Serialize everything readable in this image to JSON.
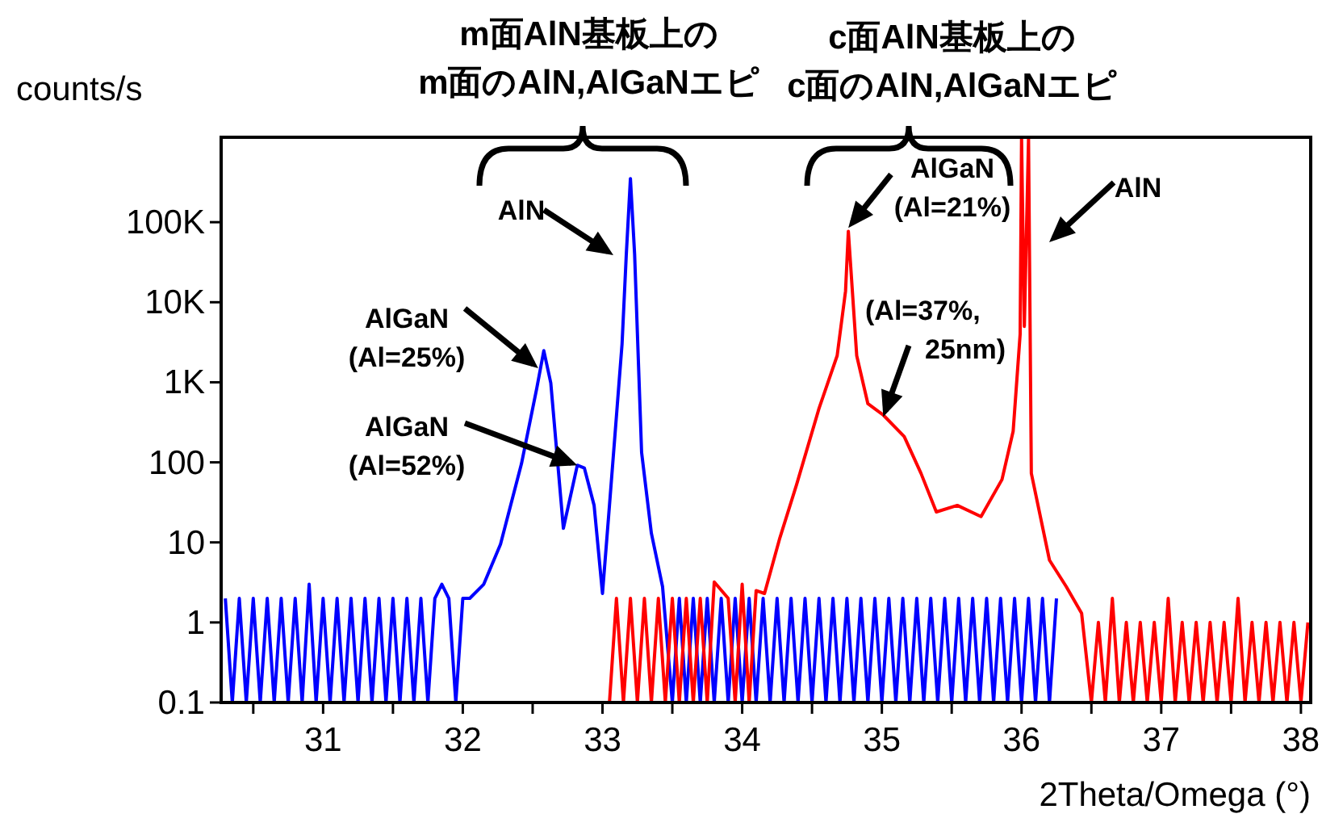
{
  "chart_data": {
    "type": "line",
    "xlabel": "2Theta/Omega (°)",
    "ylabel": "counts/s",
    "log": "y",
    "xlim": [
      30.27,
      38.07
    ],
    "ylim": [
      0.1,
      1150000
    ],
    "xticks": [
      {
        "value": 30.5,
        "label": null
      },
      31,
      {
        "value": 31.5,
        "label": null
      },
      32,
      {
        "value": 32.5,
        "label": null
      },
      33,
      {
        "value": 33.5,
        "label": null
      },
      34,
      {
        "value": 34.5,
        "label": null
      },
      35,
      {
        "value": 35.5,
        "label": null
      },
      36,
      {
        "value": 36.5,
        "label": null
      },
      37,
      {
        "value": 37.5,
        "label": null
      },
      38
    ],
    "yticks": [
      0.1,
      1,
      10,
      100,
      {
        "value": 1000,
        "label": "1K"
      },
      {
        "value": 10000,
        "label": "10K"
      },
      {
        "value": 100000,
        "label": "100K"
      }
    ],
    "grid": false,
    "series": [
      {
        "color": "#0000ff",
        "x": [
          30.3,
          30.35,
          30.4,
          30.45,
          30.5,
          30.55,
          30.6,
          30.65,
          30.7,
          30.75,
          30.8,
          30.85,
          30.9,
          30.95,
          31.0,
          31.05,
          31.1,
          31.15,
          31.2,
          31.25,
          31.3,
          31.35,
          31.4,
          31.45,
          31.5,
          31.55,
          31.6,
          31.65,
          31.7,
          31.75,
          31.8,
          31.85,
          31.9,
          31.95,
          32.0,
          32.05,
          32.15,
          32.27,
          32.42,
          32.53,
          32.58,
          32.63,
          32.68,
          32.72,
          32.82,
          32.87,
          32.94,
          33.0,
          33.05,
          33.14,
          33.17,
          33.2,
          33.23,
          33.28,
          33.35,
          33.43,
          33.5,
          33.55,
          33.6,
          33.65,
          33.7,
          33.75,
          33.8,
          33.85,
          33.9,
          33.95,
          34.0,
          34.05,
          34.1,
          34.15,
          34.2,
          34.25,
          34.3,
          34.35,
          34.4,
          34.45,
          34.5,
          34.55,
          34.6,
          34.65,
          34.7,
          34.75,
          34.8,
          34.85,
          34.9,
          34.95,
          35.0,
          35.05,
          35.1,
          35.15,
          35.2,
          35.25,
          35.3,
          35.35,
          35.4,
          35.45,
          35.5,
          35.55,
          35.6,
          35.65,
          35.7,
          35.75,
          35.8,
          35.85,
          35.9,
          35.95,
          36.0,
          36.05,
          36.1,
          36.15,
          36.2,
          36.25
        ],
        "values": [
          2,
          0.1,
          2,
          0.1,
          2,
          0.1,
          2,
          0.1,
          2,
          0.1,
          2,
          0.1,
          3,
          0.1,
          2,
          0.1,
          2,
          0.1,
          2,
          0.1,
          2,
          0.1,
          2,
          0.1,
          2,
          0.1,
          2,
          0.1,
          2,
          0.1,
          2,
          3,
          2,
          0.1,
          2,
          2,
          3,
          9.5,
          96,
          850,
          2480,
          980,
          96,
          15,
          92,
          85,
          29,
          2.3,
          29,
          3000,
          38000,
          350000,
          40000,
          133,
          13,
          2.8,
          0.1,
          2,
          0.1,
          2,
          0.1,
          2,
          0.1,
          2,
          0.1,
          2,
          0.1,
          2,
          0.1,
          2,
          0.1,
          2,
          0.1,
          2,
          0.1,
          2,
          0.1,
          2,
          0.1,
          2,
          0.1,
          2,
          0.1,
          2,
          0.1,
          2,
          0.1,
          2,
          0.1,
          2,
          0.1,
          2,
          0.1,
          2,
          0.1,
          2,
          0.1,
          2,
          0.1,
          2,
          0.1,
          2,
          0.1,
          2,
          0.1,
          2,
          0.1,
          2,
          0.1,
          2,
          0.1,
          2
        ]
      },
      {
        "color": "#ff0000",
        "x": [
          33.05,
          33.1,
          33.15,
          33.2,
          33.25,
          33.3,
          33.35,
          33.4,
          33.45,
          33.5,
          33.55,
          33.6,
          33.65,
          33.7,
          33.75,
          33.8,
          33.9,
          33.95,
          34.0,
          34.05,
          34.1,
          34.16,
          34.27,
          34.39,
          34.55,
          34.68,
          34.74,
          34.76,
          34.82,
          34.9,
          35.01,
          35.16,
          35.28,
          35.39,
          35.54,
          35.71,
          35.86,
          35.94,
          35.99,
          36.0,
          36.02,
          36.05,
          36.07,
          36.2,
          36.32,
          36.43,
          36.5,
          36.55,
          36.6,
          36.65,
          36.7,
          36.75,
          36.8,
          36.85,
          36.9,
          36.95,
          37.0,
          37.05,
          37.1,
          37.15,
          37.2,
          37.25,
          37.3,
          37.35,
          37.4,
          37.45,
          37.5,
          37.55,
          37.6,
          37.65,
          37.7,
          37.75,
          37.8,
          37.85,
          37.9,
          37.95,
          38.0,
          38.05
        ],
        "values": [
          0.1,
          2,
          0.1,
          2,
          0.1,
          2,
          0.1,
          2,
          0.1,
          2,
          0.1,
          2,
          0.1,
          2,
          0.1,
          3.2,
          2,
          0.1,
          3,
          0.1,
          2.5,
          2.3,
          11.4,
          53,
          470,
          2150,
          13800,
          77000,
          2150,
          540,
          390,
          210,
          73,
          24,
          29,
          21,
          61,
          245,
          4000,
          1100000,
          5000,
          1100000,
          73,
          6,
          2.8,
          1.3,
          0.1,
          1,
          0.1,
          2,
          0.1,
          1,
          0.1,
          1,
          0.1,
          1,
          0.1,
          2,
          0.1,
          1,
          0.1,
          1,
          0.1,
          1,
          0.1,
          1,
          0.1,
          2,
          0.1,
          1,
          0.1,
          1,
          0.1,
          1,
          0.1,
          1,
          0.1,
          1
        ]
      }
    ],
    "annotations": [
      "m面AlN基板上の\nm面のAlN,AlGaNエピ",
      "c面AlN基板上の\nc面のAlN,AlGaNエピ",
      "AlN",
      {
        "text": "AlGaN\n(Al=25%)",
        "x": 32.54,
        "y": 1500
      },
      {
        "text": "AlGaN\n(Al=52%)",
        "x": 32.82,
        "y": 92
      },
      {
        "text": "AlGaN\n(Al=21%)",
        "x": 34.76,
        "y": 85000
      },
      {
        "text": "(Al=37%,\n25nm)",
        "x": 35.01,
        "y": 370
      },
      "AlN"
    ]
  }
}
